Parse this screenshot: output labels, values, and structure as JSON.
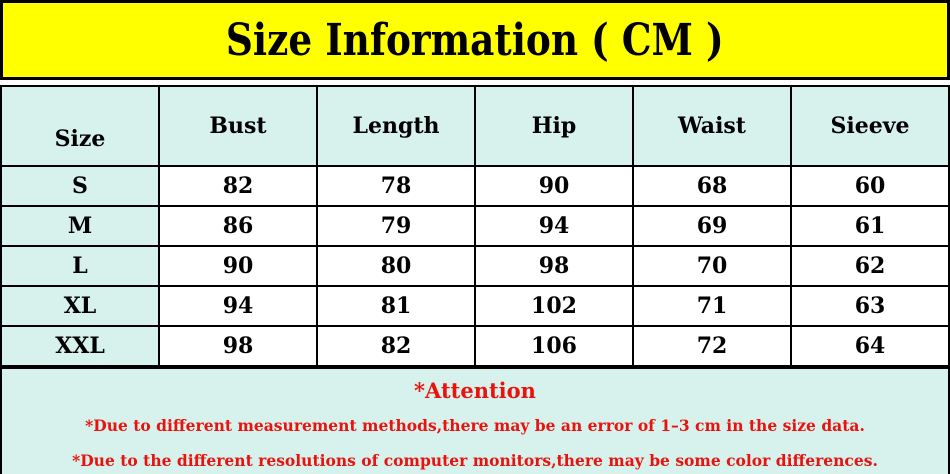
{
  "banner": {
    "title": "Size Information ( CM )",
    "background_color": "#ffff00"
  },
  "table": {
    "header_background_color": "#d7f1ec",
    "columns": [
      "Size",
      "Bust",
      "Length",
      "Hip",
      "Waist",
      "Sieeve"
    ],
    "rows": [
      {
        "size": "S",
        "values": [
          "82",
          "78",
          "90",
          "68",
          "60"
        ]
      },
      {
        "size": "M",
        "values": [
          "86",
          "79",
          "94",
          "69",
          "61"
        ]
      },
      {
        "size": "L",
        "values": [
          "90",
          "80",
          "98",
          "70",
          "62"
        ]
      },
      {
        "size": "XL",
        "values": [
          "94",
          "81",
          "102",
          "71",
          "63"
        ]
      },
      {
        "size": "XXL",
        "values": [
          "98",
          "82",
          "106",
          "72",
          "64"
        ]
      }
    ]
  },
  "attention": {
    "title": "*Attention",
    "notes": [
      "*Due to different measurement methods,there may be an error of 1–3 cm in the size data.",
      "*Due to the different resolutions of computer monitors,there may be some color differences."
    ],
    "text_color": "#e8120e",
    "background_color": "#d7f1ec"
  }
}
